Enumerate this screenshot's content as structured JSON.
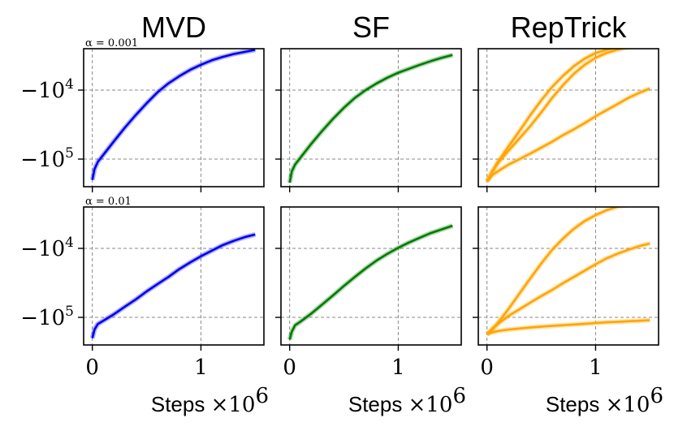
{
  "chart_data": {
    "type": "line",
    "y_scale": "symlog-negative",
    "columns": [
      {
        "title": "MVD",
        "color": "#0000ee"
      },
      {
        "title": "SF",
        "color": "#007a00"
      },
      {
        "title": "RepTrick",
        "color": "#ffa500"
      }
    ],
    "rows": [
      {
        "label": "α = 0.001"
      },
      {
        "label": "α = 0.01"
      }
    ],
    "xlim": [
      -0.08,
      1.58
    ],
    "ylim_log10_abs": [
      5.4,
      3.4
    ],
    "xticks": [
      {
        "value": 0,
        "label": "0"
      },
      {
        "value": 1,
        "label": "1"
      }
    ],
    "yticks": [
      {
        "value": -10000,
        "label": "−10",
        "exp": "4"
      },
      {
        "value": -100000,
        "label": "−10",
        "exp": "5"
      }
    ],
    "xlabel": {
      "text": "Steps",
      "times": "×10",
      "exp": "6"
    },
    "grid": true,
    "panels": [
      {
        "row": 0,
        "col": 0,
        "series": [
          {
            "x": [
              0,
              0.02,
              0.05,
              0.1,
              0.2,
              0.3,
              0.4,
              0.5,
              0.6,
              0.7,
              0.8,
              0.9,
              1.0,
              1.1,
              1.2,
              1.3,
              1.4,
              1.5
            ],
            "y": [
              -200000,
              -140000,
              -110000,
              -87000,
              -55000,
              -35000,
              -23000,
              -15500,
              -10800,
              -8000,
              -6300,
              -5100,
              -4300,
              -3700,
              -3300,
              -3000,
              -2800,
              -2600
            ]
          }
        ]
      },
      {
        "row": 0,
        "col": 1,
        "series": [
          {
            "x": [
              0,
              0.02,
              0.05,
              0.1,
              0.2,
              0.3,
              0.4,
              0.5,
              0.6,
              0.7,
              0.8,
              0.9,
              1.0,
              1.1,
              1.2,
              1.3,
              1.4,
              1.5
            ],
            "y": [
              -220000,
              -150000,
              -120000,
              -95000,
              -60000,
              -39000,
              -26000,
              -18000,
              -13000,
              -10000,
              -8000,
              -6600,
              -5600,
              -4900,
              -4300,
              -3800,
              -3400,
              -3100
            ]
          }
        ]
      },
      {
        "row": 0,
        "col": 2,
        "series": [
          {
            "x": [
              0,
              0.05,
              0.1,
              0.2,
              0.3,
              0.4,
              0.5,
              0.6,
              0.7,
              0.8,
              0.9,
              1.0,
              1.1,
              1.2,
              1.3,
              1.4,
              1.5
            ],
            "y": [
              -210000,
              -150000,
              -110000,
              -65000,
              -39000,
              -23000,
              -14000,
              -9000,
              -6200,
              -4500,
              -3500,
              -2900,
              -2600,
              -2400,
              -2300,
              -2250,
              -2200
            ]
          },
          {
            "x": [
              0,
              0.05,
              0.1,
              0.2,
              0.3,
              0.4,
              0.5,
              0.6,
              0.7,
              0.8,
              0.9,
              1.0,
              1.1,
              1.2,
              1.3,
              1.4,
              1.5
            ],
            "y": [
              -210000,
              -150000,
              -115000,
              -75000,
              -50000,
              -33000,
              -21000,
              -13000,
              -8500,
              -5800,
              -4300,
              -3400,
              -2900,
              -2600,
              -2400,
              -2250,
              -2200
            ]
          },
          {
            "x": [
              0,
              0.05,
              0.1,
              0.2,
              0.3,
              0.4,
              0.5,
              0.6,
              0.7,
              0.8,
              0.9,
              1.0,
              1.1,
              1.2,
              1.3,
              1.4,
              1.5
            ],
            "y": [
              -210000,
              -170000,
              -150000,
              -120000,
              -100000,
              -83000,
              -68000,
              -56000,
              -45000,
              -37000,
              -30000,
              -24000,
              -19500,
              -16000,
              -13000,
              -11000,
              -9500
            ]
          }
        ]
      },
      {
        "row": 1,
        "col": 0,
        "series": [
          {
            "x": [
              0,
              0.02,
              0.05,
              0.1,
              0.2,
              0.3,
              0.4,
              0.5,
              0.6,
              0.7,
              0.8,
              0.9,
              1.0,
              1.1,
              1.2,
              1.3,
              1.4,
              1.5
            ],
            "y": [
              -200000,
              -150000,
              -125000,
              -112000,
              -90000,
              -70000,
              -55000,
              -42000,
              -33000,
              -26000,
              -20000,
              -16000,
              -13000,
              -10800,
              -9000,
              -7800,
              -6900,
              -6300
            ]
          }
        ]
      },
      {
        "row": 1,
        "col": 1,
        "series": [
          {
            "x": [
              0,
              0.02,
              0.05,
              0.1,
              0.2,
              0.3,
              0.4,
              0.5,
              0.6,
              0.7,
              0.8,
              0.9,
              1.0,
              1.1,
              1.2,
              1.3,
              1.4,
              1.5
            ],
            "y": [
              -210000,
              -160000,
              -130000,
              -115000,
              -88000,
              -65000,
              -48000,
              -35000,
              -26000,
              -19500,
              -15000,
              -12000,
              -9800,
              -8200,
              -7000,
              -6000,
              -5300,
              -4700
            ]
          }
        ]
      },
      {
        "row": 1,
        "col": 2,
        "series": [
          {
            "x": [
              0,
              0.05,
              0.1,
              0.2,
              0.3,
              0.4,
              0.5,
              0.6,
              0.7,
              0.8,
              0.9,
              1.0,
              1.1,
              1.2,
              1.3,
              1.4,
              1.5
            ],
            "y": [
              -175000,
              -150000,
              -120000,
              -75000,
              -45000,
              -27000,
              -16500,
              -10500,
              -7200,
              -5200,
              -4000,
              -3300,
              -2800,
              -2500,
              -2350,
              -2250,
              -2200
            ]
          },
          {
            "x": [
              0,
              0.05,
              0.1,
              0.2,
              0.3,
              0.4,
              0.5,
              0.6,
              0.7,
              0.8,
              0.9,
              1.0,
              1.1,
              1.2,
              1.3,
              1.4,
              1.5
            ],
            "y": [
              -175000,
              -145000,
              -125000,
              -95000,
              -76000,
              -61000,
              -49000,
              -40000,
              -32000,
              -26000,
              -21000,
              -17000,
              -14000,
              -12000,
              -10500,
              -9300,
              -8500
            ]
          },
          {
            "x": [
              0,
              0.05,
              0.1,
              0.2,
              0.3,
              0.4,
              0.5,
              0.6,
              0.7,
              0.8,
              0.9,
              1.0,
              1.1,
              1.2,
              1.3,
              1.4,
              1.5
            ],
            "y": [
              -175000,
              -165000,
              -158000,
              -150000,
              -145000,
              -140000,
              -136000,
              -133000,
              -130000,
              -127000,
              -124000,
              -121000,
              -118000,
              -116000,
              -114000,
              -112000,
              -110000
            ]
          }
        ]
      }
    ]
  }
}
